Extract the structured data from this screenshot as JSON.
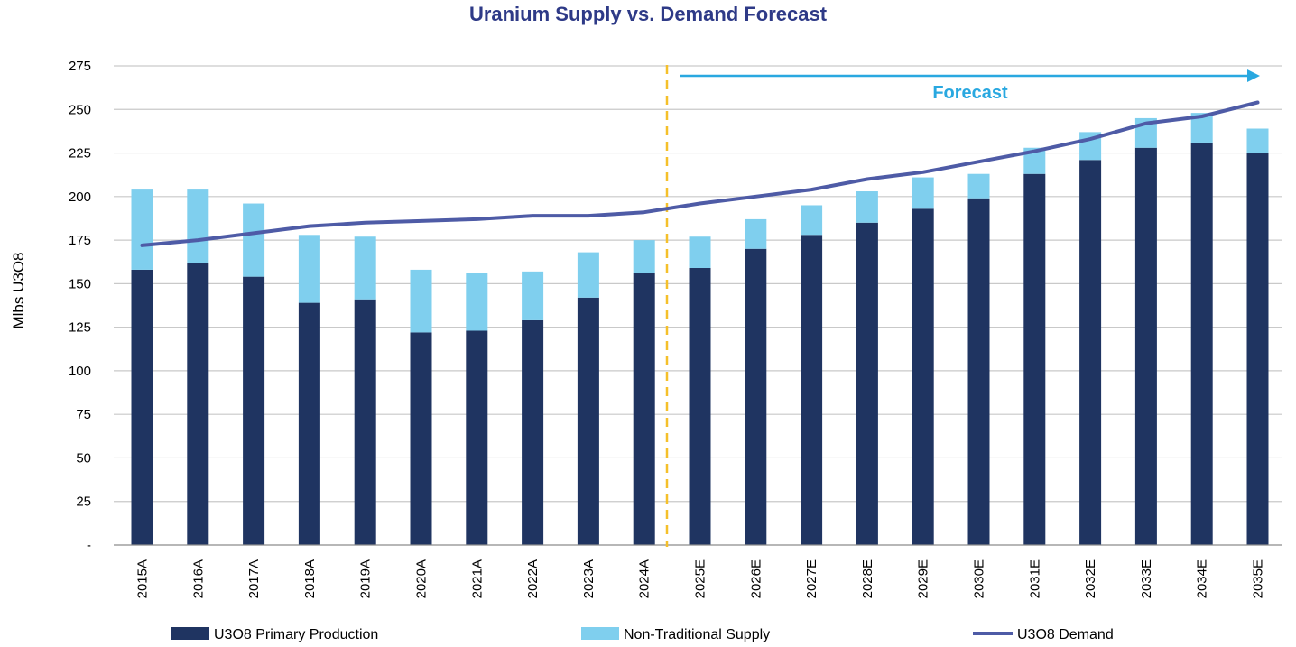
{
  "colors": {
    "primary": "#1f3461",
    "non_traditional": "#7fcfee",
    "demand": "#4e5ba6",
    "title": "#2e3a87",
    "forecast_arrow": "#29a8e0",
    "divider": "#f5c02a",
    "grid": "#c9c9c9"
  },
  "chart_data": {
    "type": "bar",
    "stacked": true,
    "title": "Uranium Supply vs. Demand Forecast",
    "xlabel": "",
    "ylabel": "Mlbs U3O8",
    "ylim": [
      0,
      275
    ],
    "yticks": [
      0,
      25,
      50,
      75,
      100,
      125,
      150,
      175,
      200,
      225,
      250,
      275
    ],
    "ytick_labels": [
      "-",
      "25",
      "50",
      "75",
      "100",
      "125",
      "150",
      "175",
      "200",
      "225",
      "250",
      "275"
    ],
    "grid": true,
    "legend_position": "bottom",
    "categories": [
      "2015A",
      "2016A",
      "2017A",
      "2018A",
      "2019A",
      "2020A",
      "2021A",
      "2022A",
      "2023A",
      "2024A",
      "2025E",
      "2026E",
      "2027E",
      "2028E",
      "2029E",
      "2030E",
      "2031E",
      "2032E",
      "2033E",
      "2034E",
      "2035E"
    ],
    "series": [
      {
        "name": "U3O8 Primary Production",
        "kind": "bar",
        "values": [
          158,
          162,
          154,
          139,
          141,
          122,
          123,
          129,
          142,
          156,
          159,
          170,
          178,
          185,
          193,
          199,
          213,
          221,
          228,
          231,
          225
        ]
      },
      {
        "name": "Non-Traditional Supply",
        "kind": "bar",
        "values": [
          46,
          42,
          42,
          39,
          36,
          36,
          33,
          28,
          26,
          19,
          18,
          17,
          17,
          18,
          18,
          14,
          15,
          16,
          17,
          17,
          14
        ]
      },
      {
        "name": "U3O8 Demand",
        "kind": "line",
        "values": [
          172,
          175,
          179,
          183,
          185,
          186,
          187,
          189,
          189,
          191,
          196,
          200,
          204,
          210,
          214,
          220,
          226,
          233,
          242,
          246,
          254
        ]
      }
    ],
    "annotations": {
      "forecast_label": "Forecast",
      "forecast_start_after": "2024A"
    }
  }
}
